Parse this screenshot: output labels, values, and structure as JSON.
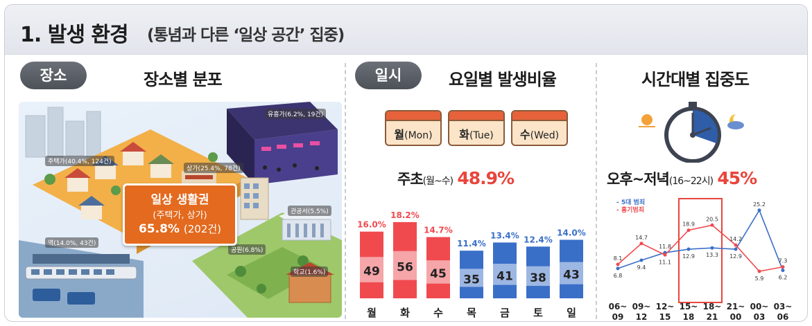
{
  "header": {
    "title": "1. 발생 환경",
    "subtitle": "(통념과 다른 ‘일상 공간’ 집중)"
  },
  "place": {
    "pill": "장소",
    "title": "장소별 분포",
    "labels": {
      "entertainment": "유흥가(6.2%, 19건)",
      "residential": "주택가(40.4%, 124건)",
      "commercial": "상가(25.4%, 78건)",
      "office": "관공서(5.5%)",
      "station": "역(14.0%, 43건)",
      "park": "공원(6.8%)",
      "school": "학교(1.6%)"
    },
    "callout": {
      "line1": "일상 생활권",
      "line2": "(주택가, 상가)",
      "pct": "65.8%",
      "count": "(202건)"
    }
  },
  "day": {
    "pill": "일시",
    "title": "요일별 발생비율",
    "calendars": [
      {
        "day": "월",
        "en": "(Mon)"
      },
      {
        "day": "화",
        "en": "(Tue)"
      },
      {
        "day": "수",
        "en": "(Wed)"
      }
    ],
    "headline": {
      "main": "주초",
      "range": "(월~수)",
      "pct": "48.9%"
    }
  },
  "time": {
    "title": "시간대별 집중도",
    "headline": {
      "main": "오후~저녁",
      "range": "(16~22시)",
      "pct": "45%"
    }
  },
  "colors": {
    "red": "#f04a4f",
    "blue": "#3a6fc8",
    "orange": "#e36a1e",
    "accent_red": "#e8453c"
  },
  "chart_data": [
    {
      "type": "bar",
      "categories": [
        "월",
        "화",
        "수",
        "목",
        "금",
        "토",
        "일"
      ],
      "values": [
        49,
        56,
        45,
        35,
        41,
        38,
        43
      ],
      "percent_labels": [
        "16.0%",
        "18.2%",
        "14.7%",
        "11.4%",
        "13.4%",
        "12.4%",
        "14.0%"
      ],
      "highlight_colors": [
        "#f04a4f",
        "#f04a4f",
        "#f04a4f",
        "#3a6fc8",
        "#3a6fc8",
        "#3a6fc8",
        "#3a6fc8"
      ],
      "ylim": [
        0,
        60
      ],
      "grid": false
    },
    {
      "type": "line",
      "categories": [
        "06~09",
        "09~12",
        "12~15",
        "15~18",
        "18~21",
        "21~00",
        "00~03",
        "03~06"
      ],
      "series": [
        {
          "name": "5대 범죄",
          "color": "#3a6fc8",
          "values": [
            6.8,
            9.4,
            11.8,
            12.9,
            13.3,
            12.9,
            25.2,
            6.2
          ]
        },
        {
          "name": "흉기범죄",
          "color": "#f04a4f",
          "values": [
            8.1,
            14.7,
            11.1,
            18.9,
            20.5,
            14.2,
            5.9,
            7.3
          ]
        }
      ],
      "highlight_range": [
        "15~18",
        "18~21"
      ],
      "legend": "top-left",
      "ylim": [
        0,
        28
      ],
      "grid": false
    }
  ]
}
